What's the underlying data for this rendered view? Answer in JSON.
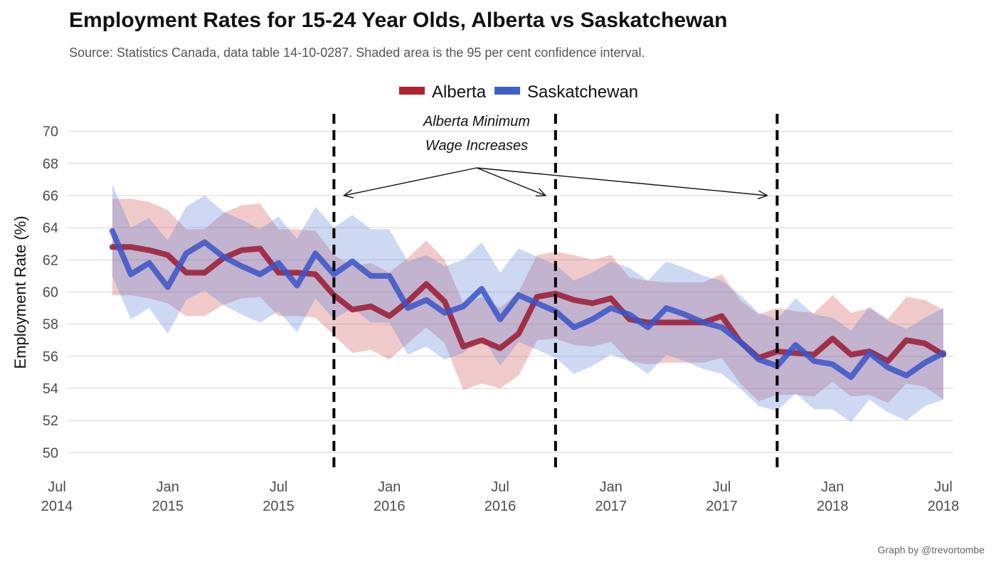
{
  "title": "Employment Rates for 15-24 Year Olds, Alberta vs Saskatchewan",
  "subtitle": "Source: Statistics Canada, data table 14-10-0287. Shaded area is the 95 per cent confidence interval.",
  "credit": "Graph by @trevortombe",
  "chart_data": {
    "type": "line",
    "title": "Employment Rates for 15-24 Year Olds, Alberta vs Saskatchewan",
    "ylabel": "Employment Rate (%)",
    "xlabel": "",
    "ylim": [
      49,
      71
    ],
    "xlim": [
      "2014-07",
      "2018-07"
    ],
    "yticks": [
      50,
      52,
      54,
      56,
      58,
      60,
      62,
      64,
      66,
      68,
      70
    ],
    "xticks": [
      {
        "date": "2014-07",
        "line1": "Jul",
        "line2": "2014"
      },
      {
        "date": "2015-01",
        "line1": "Jan",
        "line2": "2015"
      },
      {
        "date": "2015-07",
        "line1": "Jul",
        "line2": "2015"
      },
      {
        "date": "2016-01",
        "line1": "Jan",
        "line2": "2016"
      },
      {
        "date": "2016-07",
        "line1": "Jul",
        "line2": "2016"
      },
      {
        "date": "2017-01",
        "line1": "Jan",
        "line2": "2017"
      },
      {
        "date": "2017-07",
        "line1": "Jul",
        "line2": "2017"
      },
      {
        "date": "2018-01",
        "line1": "Jan",
        "line2": "2018"
      },
      {
        "date": "2018-07",
        "line1": "Jul",
        "line2": "2018"
      }
    ],
    "grid": "horizontal",
    "legend_position": "top",
    "x": [
      "2014-10",
      "2014-11",
      "2014-12",
      "2015-01",
      "2015-02",
      "2015-03",
      "2015-04",
      "2015-05",
      "2015-06",
      "2015-07",
      "2015-08",
      "2015-09",
      "2015-10",
      "2015-11",
      "2015-12",
      "2016-01",
      "2016-02",
      "2016-03",
      "2016-04",
      "2016-05",
      "2016-06",
      "2016-07",
      "2016-08",
      "2016-09",
      "2016-10",
      "2016-11",
      "2016-12",
      "2017-01",
      "2017-02",
      "2017-03",
      "2017-04",
      "2017-05",
      "2017-06",
      "2017-07",
      "2017-08",
      "2017-09",
      "2017-10",
      "2017-11",
      "2017-12",
      "2018-01",
      "2018-02",
      "2018-03",
      "2018-04",
      "2018-05",
      "2018-06",
      "2018-07"
    ],
    "series": [
      {
        "name": "Alberta",
        "color": "#b2222f",
        "values": [
          62.8,
          62.8,
          62.6,
          62.3,
          61.2,
          61.2,
          62.1,
          62.6,
          62.7,
          61.2,
          61.2,
          61.1,
          59.8,
          58.9,
          59.1,
          58.5,
          59.4,
          60.5,
          59.4,
          56.6,
          57.0,
          56.5,
          57.4,
          59.7,
          59.9,
          59.5,
          59.3,
          59.6,
          58.3,
          58.1,
          58.1,
          58.1,
          58.1,
          58.5,
          56.9,
          55.9,
          56.3,
          56.2,
          56.1,
          57.1,
          56.1,
          56.3,
          55.7,
          57.0,
          56.8,
          56.1
        ],
        "lower": [
          59.8,
          59.8,
          59.6,
          59.3,
          58.5,
          58.5,
          59.2,
          59.6,
          59.7,
          58.5,
          58.5,
          58.4,
          57.3,
          56.2,
          56.4,
          55.8,
          56.8,
          57.8,
          56.8,
          53.9,
          54.3,
          54.0,
          54.8,
          57.0,
          57.1,
          56.7,
          56.6,
          56.9,
          55.7,
          55.5,
          55.6,
          55.6,
          55.6,
          55.9,
          54.3,
          53.2,
          53.6,
          53.6,
          53.5,
          54.4,
          53.5,
          53.6,
          53.1,
          54.3,
          54.1,
          53.3
        ],
        "upper": [
          65.8,
          65.8,
          65.6,
          65.1,
          63.9,
          63.9,
          64.9,
          65.4,
          65.5,
          63.9,
          63.9,
          63.8,
          62.3,
          61.6,
          61.8,
          61.2,
          62.1,
          63.2,
          62.0,
          59.3,
          59.7,
          59.0,
          60.0,
          62.3,
          62.5,
          62.3,
          62.0,
          62.3,
          60.9,
          60.7,
          60.6,
          60.6,
          60.6,
          61.1,
          59.5,
          58.6,
          59.0,
          58.8,
          58.7,
          59.8,
          58.7,
          59.0,
          58.3,
          59.7,
          59.5,
          58.9
        ]
      },
      {
        "name": "Saskatchewan",
        "color": "#3e5fce",
        "values": [
          63.8,
          61.1,
          61.8,
          60.3,
          62.4,
          63.1,
          62.2,
          61.6,
          61.1,
          61.8,
          60.4,
          62.4,
          61.1,
          61.9,
          61.0,
          61.0,
          59.0,
          59.5,
          58.7,
          59.1,
          60.2,
          58.3,
          59.8,
          59.3,
          58.8,
          57.8,
          58.3,
          59.0,
          58.6,
          57.8,
          59.0,
          58.6,
          58.1,
          57.8,
          56.9,
          55.8,
          55.4,
          56.7,
          55.7,
          55.5,
          54.7,
          56.2,
          55.3,
          54.8,
          55.6,
          56.2
        ],
        "lower": [
          61.0,
          58.3,
          59.0,
          57.4,
          59.5,
          60.1,
          59.2,
          58.6,
          58.1,
          58.8,
          57.5,
          59.6,
          58.3,
          59.0,
          58.1,
          58.1,
          56.1,
          56.6,
          55.8,
          56.2,
          57.3,
          55.4,
          56.9,
          56.4,
          55.9,
          54.9,
          55.4,
          56.1,
          55.7,
          54.9,
          56.1,
          55.7,
          55.2,
          54.9,
          54.0,
          52.9,
          52.6,
          53.7,
          52.7,
          52.7,
          51.9,
          53.3,
          52.5,
          52.0,
          52.9,
          53.3
        ],
        "upper": [
          66.7,
          64.0,
          64.6,
          63.2,
          65.3,
          66.0,
          65.0,
          64.5,
          63.9,
          64.7,
          63.3,
          65.3,
          64.0,
          64.8,
          63.9,
          63.9,
          61.9,
          62.3,
          61.6,
          62.0,
          63.1,
          61.2,
          62.7,
          62.2,
          61.7,
          60.7,
          61.2,
          61.9,
          61.5,
          60.7,
          61.9,
          61.5,
          61.0,
          60.7,
          59.8,
          58.7,
          58.3,
          59.6,
          58.6,
          58.4,
          57.6,
          59.1,
          58.2,
          57.7,
          58.4,
          59.0
        ]
      }
    ],
    "vertical_markers": [
      "2015-10",
      "2016-10",
      "2017-10"
    ],
    "annotation": {
      "line1": "Alberta Minimum",
      "line2": "Wage Increases"
    }
  }
}
